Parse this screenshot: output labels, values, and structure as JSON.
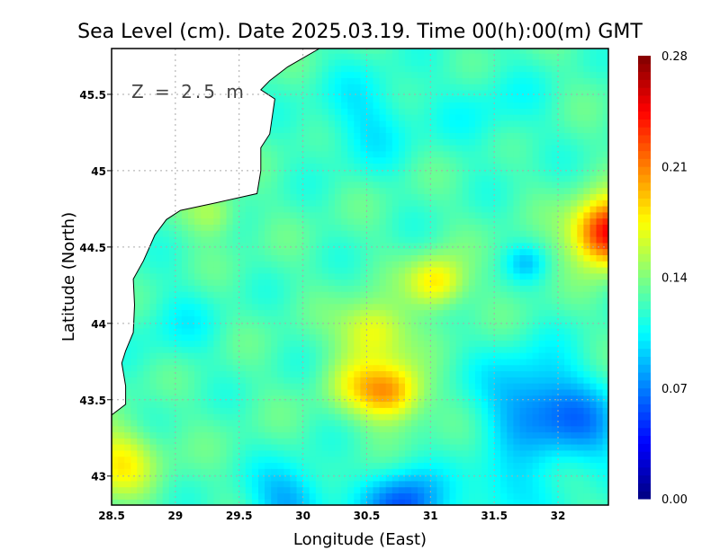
{
  "chart_data": {
    "type": "heatmap",
    "title": "Sea Level (cm). Date 2025.03.19. Time 00(h):00(m) GMT",
    "annotation": "Z = 2.5 m",
    "xlabel": "Longitude (East)",
    "ylabel": "Latitude (North)",
    "xlim": [
      28.5,
      32.395
    ],
    "ylim": [
      42.81,
      45.8
    ],
    "xticks": [
      28.5,
      29,
      29.5,
      30,
      30.5,
      31,
      31.5,
      32
    ],
    "xtick_labels": [
      "28.5",
      "29",
      "29.5",
      "30",
      "30.5",
      "31",
      "31.5",
      "32"
    ],
    "yticks": [
      43,
      43.5,
      44,
      44.5,
      45,
      45.5
    ],
    "ytick_labels": [
      "43",
      "43.5",
      "44",
      "44.5",
      "45",
      "45.5"
    ],
    "grid": true,
    "colorbar": {
      "range": [
        0,
        0.28
      ],
      "ticks": [
        "0.00",
        "0.07",
        "0.14",
        "0.21",
        "0.28"
      ],
      "tick_values": [
        0,
        0.07,
        0.14,
        0.21,
        0.28
      ],
      "placement": "right"
    },
    "field_base": 0.125,
    "field_features": [
      {
        "lon": 30.7,
        "lat": 43.55,
        "amp": 0.075,
        "r": 0.25
      },
      {
        "lon": 30.55,
        "lat": 43.95,
        "amp": 0.055,
        "r": 0.25
      },
      {
        "lon": 31.05,
        "lat": 44.27,
        "amp": 0.06,
        "r": 0.22
      },
      {
        "lon": 30.4,
        "lat": 43.6,
        "amp": 0.03,
        "r": 0.25
      },
      {
        "lon": 32.4,
        "lat": 44.6,
        "amp": 0.13,
        "r": 0.28
      },
      {
        "lon": 31.8,
        "lat": 43.5,
        "amp": -0.05,
        "r": 0.4
      },
      {
        "lon": 32.2,
        "lat": 43.3,
        "amp": -0.04,
        "r": 0.35
      },
      {
        "lon": 30.8,
        "lat": 42.8,
        "amp": -0.07,
        "r": 0.3
      },
      {
        "lon": 29.9,
        "lat": 42.85,
        "amp": -0.045,
        "r": 0.3
      },
      {
        "lon": 31.6,
        "lat": 42.9,
        "amp": -0.03,
        "r": 0.3
      },
      {
        "lon": 28.55,
        "lat": 43.1,
        "amp": 0.05,
        "r": 0.3
      },
      {
        "lon": 30.5,
        "lat": 45.35,
        "amp": -0.025,
        "r": 0.4
      },
      {
        "lon": 31.5,
        "lat": 45.4,
        "amp": -0.015,
        "r": 0.4
      },
      {
        "lon": 29.3,
        "lat": 44.72,
        "amp": 0.03,
        "r": 0.2
      },
      {
        "lon": 31.75,
        "lat": 44.4,
        "amp": -0.025,
        "r": 0.15
      },
      {
        "lon": 29.0,
        "lat": 44.0,
        "amp": -0.015,
        "r": 0.35
      }
    ],
    "coastline": [
      [
        28.5,
        43.4
      ],
      [
        28.61,
        43.47
      ],
      [
        28.61,
        43.59
      ],
      [
        28.58,
        43.74
      ],
      [
        28.61,
        43.82
      ],
      [
        28.67,
        43.94
      ],
      [
        28.68,
        44.12
      ],
      [
        28.67,
        44.29
      ],
      [
        28.75,
        44.41
      ],
      [
        28.84,
        44.58
      ],
      [
        28.93,
        44.68
      ],
      [
        29.04,
        44.74
      ],
      [
        29.32,
        44.79
      ],
      [
        29.64,
        44.85
      ],
      [
        29.67,
        45.0
      ],
      [
        29.67,
        45.15
      ],
      [
        29.74,
        45.24
      ],
      [
        29.78,
        45.47
      ],
      [
        29.67,
        45.53
      ],
      [
        29.74,
        45.59
      ],
      [
        29.88,
        45.68
      ],
      [
        30.13,
        45.8
      ]
    ]
  }
}
